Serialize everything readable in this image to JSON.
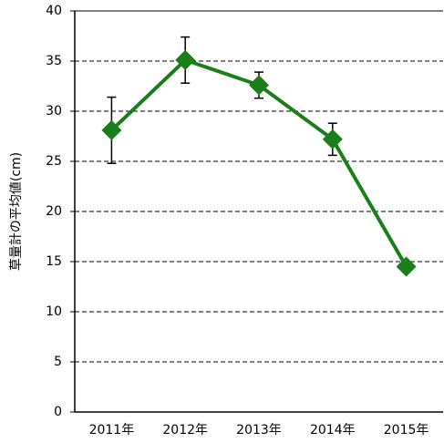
{
  "chart_data": {
    "type": "line",
    "y_label": "草量計の平均値(cm)",
    "categories": [
      "2011年",
      "2012年",
      "2013年",
      "2014年",
      "2015年"
    ],
    "series": [
      {
        "name": null,
        "color": "#1a7f1a",
        "values": [
          28.1,
          35.1,
          32.6,
          27.2,
          14.5
        ],
        "errors": [
          3.3,
          2.3,
          1.3,
          1.6,
          null
        ]
      }
    ],
    "ylim": [
      0,
      40
    ],
    "yticks": [
      0,
      5,
      10,
      15,
      20,
      25,
      30,
      35,
      40
    ],
    "grid": true
  }
}
